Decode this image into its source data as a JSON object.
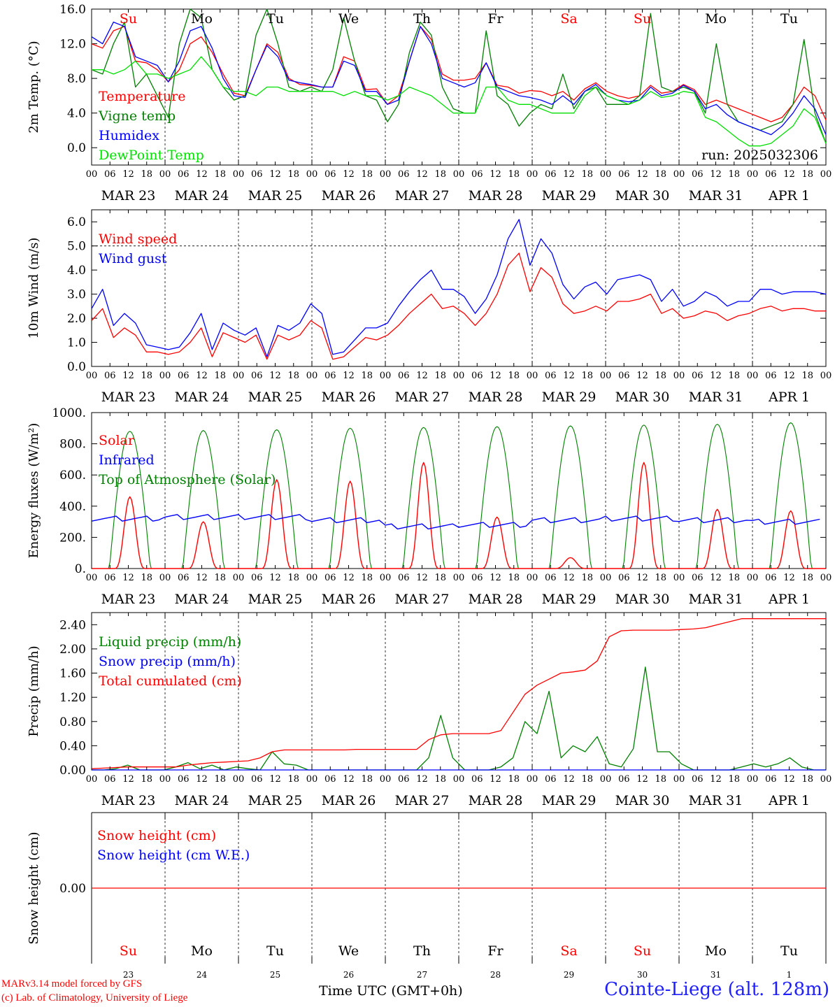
{
  "footer": {
    "model": "MARv3.14 model forced by GFS",
    "credit": "(c) Lab. of Climatology, University of Liege",
    "time_axis": "Time UTC (GMT+0h)",
    "station": "Cointe-Liege (alt. 128m)"
  },
  "colors": {
    "red": "#ff0000",
    "blue": "#0000ff",
    "dark_green": "#008000",
    "light_green": "#00e000",
    "weekend": "#ff0000"
  },
  "chart_data": [
    {
      "type": "line",
      "id": "temperature",
      "ylabel": "2m Temp. (°C)",
      "ylim": [
        -2,
        16
      ],
      "yticks": [
        0,
        4,
        8,
        12,
        16
      ],
      "ytick_labels": [
        "0.0",
        "4.0",
        "8.0",
        "12.0",
        "16.0"
      ],
      "hours_ticks": [
        "00",
        "06",
        "12",
        "18"
      ],
      "date_labels": [
        "MAR 23",
        "MAR 24",
        "MAR 25",
        "MAR 26",
        "MAR 27",
        "MAR 28",
        "MAR 29",
        "MAR 30",
        "MAR 31",
        "APR  1"
      ],
      "day_labels": [
        "Su",
        "Mo",
        "Tu",
        "We",
        "Th",
        "Fr",
        "Sa",
        "Su",
        "Mo",
        "Tu"
      ],
      "weekend": [
        true,
        false,
        false,
        false,
        false,
        false,
        true,
        true,
        false,
        false
      ],
      "annotation": "run: 2025032306",
      "series_step_hours": 6,
      "series": [
        {
          "name": "Temperature",
          "color": "#ff0000",
          "values": [
            12,
            11.5,
            13.5,
            14,
            10,
            9.8,
            9,
            7.6,
            9,
            12,
            12.8,
            11,
            8.5,
            6.3,
            6,
            9,
            12,
            11,
            8,
            7.3,
            7.2,
            7,
            7,
            10.5,
            10,
            6.7,
            6.8,
            5,
            6,
            10,
            14,
            12.5,
            8.5,
            7.8,
            7.8,
            8,
            9.8,
            7.2,
            7,
            6.3,
            6.6,
            6.5,
            6,
            6.5,
            5.5,
            6.8,
            7.5,
            6.5,
            6,
            5.7,
            6,
            7.2,
            6.3,
            6.5,
            7.3,
            6.7,
            5,
            5.5,
            5,
            4.5,
            4,
            3.5,
            3,
            3.5,
            5,
            7,
            6,
            3.2
          ]
        },
        {
          "name": "Vigne temp",
          "color": "#008000",
          "values": [
            9,
            8.5,
            12,
            14.5,
            7,
            8.5,
            6,
            3.5,
            12,
            16,
            15,
            9,
            7,
            5.5,
            6,
            13,
            16,
            12,
            7,
            6.5,
            7,
            6.5,
            9,
            15,
            10,
            6,
            5.5,
            3,
            5,
            11,
            14.5,
            13,
            7,
            4.5,
            4,
            4,
            13.5,
            6,
            5,
            2.5,
            4,
            5,
            4.5,
            8.5,
            4.5,
            6.5,
            7,
            5,
            5,
            5,
            6,
            15.5,
            7,
            6.5,
            7,
            6.5,
            4,
            12,
            5,
            3,
            2.5,
            2,
            2.5,
            3,
            5,
            12.5,
            4,
            0.5
          ]
        },
        {
          "name": "Humidex",
          "color": "#0000ff",
          "values": [
            12.8,
            12,
            14.5,
            14,
            10.5,
            10,
            9.5,
            7.6,
            10,
            13.5,
            14,
            11.5,
            8,
            6,
            5.8,
            9,
            11.8,
            10.5,
            7.8,
            7.5,
            7.3,
            7,
            7,
            10,
            9.5,
            6.5,
            6.5,
            5,
            5.5,
            10,
            14,
            12,
            8,
            7.5,
            7,
            7.5,
            9.8,
            7,
            6.5,
            6,
            5.8,
            5.5,
            5,
            6,
            5,
            6.5,
            7.3,
            6,
            5.5,
            5.3,
            5.5,
            7,
            6,
            6.3,
            7.2,
            6.5,
            4.5,
            5,
            3.8,
            3,
            2.5,
            2,
            1.5,
            2.5,
            4,
            6,
            4.5,
            1.5
          ]
        },
        {
          "name": "DewPoint Temp",
          "color": "#00e000",
          "values": [
            9,
            9,
            8.5,
            9,
            10,
            8.5,
            8.5,
            8,
            8.5,
            9,
            10.5,
            9,
            7,
            6.5,
            6.5,
            6,
            7,
            7,
            6.5,
            6.5,
            6.5,
            6.5,
            6.5,
            6,
            6.5,
            6,
            6,
            5.5,
            6,
            7,
            6.5,
            6,
            5,
            4,
            4,
            4,
            7,
            7,
            5.5,
            5,
            5,
            4.5,
            4,
            4,
            4,
            6,
            7,
            6,
            5.5,
            5,
            5.5,
            6.5,
            5.8,
            6,
            6.5,
            6.3,
            3.5,
            3,
            2,
            1,
            0.2,
            0.2,
            0.5,
            1.5,
            2.5,
            4.5,
            3.5,
            0.5
          ]
        }
      ],
      "legend": [
        {
          "label": "Temperature",
          "color": "#ff0000"
        },
        {
          "label": "Vigne temp",
          "color": "#008000"
        },
        {
          "label": "Humidex",
          "color": "#0000ff"
        },
        {
          "label": "DewPoint Temp",
          "color": "#00e000"
        }
      ]
    },
    {
      "type": "line",
      "id": "wind",
      "ylabel": "10m Wind (m/s)",
      "ylim": [
        0,
        6.5
      ],
      "yticks": [
        0,
        1,
        2,
        3,
        4,
        5,
        6
      ],
      "ytick_labels": [
        "0.0",
        "1.0",
        "2.0",
        "3.0",
        "4.0",
        "5.0",
        "6.0"
      ],
      "hline": 5,
      "date_labels": [
        "MAR 23",
        "MAR 24",
        "MAR 25",
        "MAR 26",
        "MAR 27",
        "MAR 28",
        "MAR 29",
        "MAR 30",
        "MAR 31",
        "APR  1"
      ],
      "series_step_hours": 6,
      "series": [
        {
          "name": "Wind speed",
          "color": "#ff0000",
          "values": [
            1.9,
            2.4,
            1.2,
            1.6,
            1.3,
            0.6,
            0.6,
            0.5,
            0.6,
            1,
            1.6,
            0.4,
            1.4,
            1.2,
            1,
            1.3,
            0.3,
            1.3,
            1.1,
            1.3,
            1.9,
            1.6,
            0.3,
            0.4,
            0.8,
            1.2,
            1.1,
            1.3,
            1.7,
            2.2,
            2.6,
            3,
            2.4,
            2.5,
            2.2,
            1.7,
            2.2,
            3,
            4.2,
            4.7,
            3.1,
            4.1,
            3.7,
            2.6,
            2.2,
            2.3,
            2.5,
            2.3,
            2.7,
            2.7,
            2.8,
            3,
            2.2,
            2.4,
            2,
            2.1,
            2.3,
            2.2,
            1.9,
            2.1,
            2.2,
            2.4,
            2.5,
            2.3,
            2.4,
            2.4,
            2.3,
            2.3
          ]
        },
        {
          "name": "Wind gust",
          "color": "#0000ff",
          "values": [
            2.4,
            3.2,
            1.7,
            2.2,
            1.8,
            0.9,
            0.8,
            0.7,
            0.8,
            1.4,
            2.2,
            0.7,
            1.8,
            1.5,
            1.3,
            1.6,
            0.4,
            1.7,
            1.5,
            1.8,
            2.6,
            2.2,
            0.5,
            0.6,
            1.1,
            1.6,
            1.6,
            1.8,
            2.5,
            3.1,
            3.6,
            4,
            3.2,
            3.2,
            2.9,
            2.2,
            2.8,
            3.8,
            5.3,
            6.1,
            4.2,
            5.3,
            4.7,
            3.4,
            2.8,
            3.3,
            3.5,
            3,
            3.6,
            3.7,
            3.8,
            3.6,
            2.7,
            3.2,
            2.5,
            2.7,
            3.1,
            2.9,
            2.5,
            2.7,
            2.7,
            3.2,
            3.2,
            3,
            3.1,
            3.1,
            3.1,
            3
          ]
        }
      ],
      "legend": [
        {
          "label": "Wind speed",
          "color": "#ff0000"
        },
        {
          "label": "Wind gust",
          "color": "#0000ff"
        }
      ]
    },
    {
      "type": "line",
      "id": "energy",
      "ylabel": "Energy fluxes (W/m²)",
      "ylim": [
        0,
        1000
      ],
      "yticks": [
        0,
        200,
        400,
        600,
        800,
        1000
      ],
      "ytick_labels": [
        "0.",
        "200.",
        "400.",
        "600.",
        "800.",
        "1000."
      ],
      "date_labels": [
        "MAR 23",
        "MAR 24",
        "MAR 25",
        "MAR 26",
        "MAR 27",
        "MAR 28",
        "MAR 29",
        "MAR 30",
        "MAR 31",
        "APR  1"
      ],
      "solar_peaks": [
        460,
        300,
        570,
        560,
        680,
        330,
        70,
        680,
        380,
        370
      ],
      "toa_peaks": [
        880,
        885,
        890,
        900,
        905,
        910,
        915,
        920,
        925,
        935
      ],
      "infrared_daily": [
        320,
        330,
        330,
        310,
        270,
        280,
        310,
        320,
        310,
        300
      ],
      "legend": [
        {
          "label": "Solar",
          "color": "#ff0000"
        },
        {
          "label": "Infrared",
          "color": "#0000ff"
        },
        {
          "label": "Top of Atmosphere (Solar)",
          "color": "#008000"
        }
      ]
    },
    {
      "type": "line",
      "id": "precip",
      "ylabel": "Precip (mm/h)",
      "ylim": [
        0,
        2.6
      ],
      "yticks": [
        0,
        0.4,
        0.8,
        1.2,
        1.6,
        2.0,
        2.4
      ],
      "ytick_labels": [
        "0.00",
        "0.40",
        "0.80",
        "1.20",
        "1.60",
        "2.00",
        "2.40"
      ],
      "date_labels": [
        "MAR 23",
        "MAR 24",
        "MAR 25",
        "MAR 26",
        "MAR 27",
        "MAR 28",
        "MAR 29",
        "MAR 30",
        "MAR 31",
        "APR  1"
      ],
      "series_step_hours": 6,
      "series": [
        {
          "name": "Liquid precip (mm/h)",
          "color": "#008000",
          "values": [
            0,
            0,
            0.02,
            0.08,
            0,
            0,
            0,
            0.05,
            0.12,
            0.02,
            0.08,
            0,
            0.05,
            0.02,
            0,
            0.3,
            0.1,
            0.08,
            0,
            0,
            0,
            0,
            0,
            0,
            0,
            0,
            0,
            0,
            0.2,
            0.9,
            0.2,
            0,
            0,
            0,
            0.05,
            0.2,
            0.8,
            0.6,
            1.3,
            0.2,
            0.4,
            0.3,
            0.55,
            0.1,
            0.05,
            0.35,
            1.7,
            0.3,
            0.3,
            0.1,
            0,
            0,
            0,
            0,
            0.05,
            0.1,
            0.05,
            0.1,
            0.2,
            0.05,
            0,
            0
          ]
        },
        {
          "name": "Snow precip (mm/h)",
          "color": "#0000ff",
          "values": [
            0,
            0,
            0,
            0,
            0,
            0,
            0,
            0,
            0,
            0,
            0,
            0,
            0,
            0,
            0,
            0,
            0,
            0,
            0,
            0,
            0,
            0,
            0,
            0,
            0,
            0,
            0,
            0,
            0,
            0,
            0,
            0,
            0,
            0,
            0,
            0,
            0,
            0,
            0,
            0,
            0,
            0,
            0,
            0,
            0,
            0,
            0,
            0,
            0,
            0,
            0,
            0,
            0,
            0,
            0,
            0,
            0,
            0,
            0,
            0,
            0,
            0
          ]
        },
        {
          "name": "Total cumulated (cm)",
          "color": "#ff0000",
          "values": [
            0.02,
            0.03,
            0.04,
            0.05,
            0.05,
            0.05,
            0.05,
            0.05,
            0.08,
            0.1,
            0.12,
            0.13,
            0.14,
            0.15,
            0.2,
            0.3,
            0.33,
            0.33,
            0.33,
            0.33,
            0.33,
            0.33,
            0.34,
            0.34,
            0.34,
            0.34,
            0.34,
            0.34,
            0.5,
            0.58,
            0.6,
            0.6,
            0.6,
            0.6,
            0.65,
            0.95,
            1.25,
            1.4,
            1.5,
            1.6,
            1.62,
            1.65,
            1.8,
            2.2,
            2.3,
            2.31,
            2.31,
            2.31,
            2.31,
            2.32,
            2.33,
            2.35,
            2.4,
            2.45,
            2.5,
            2.5,
            2.5,
            2.5,
            2.5,
            2.5,
            2.5,
            2.5
          ]
        }
      ],
      "legend": [
        {
          "label": "Liquid precip (mm/h)",
          "color": "#008000"
        },
        {
          "label": "Snow precip (mm/h)",
          "color": "#0000ff"
        },
        {
          "label": "Total cumulated (cm)",
          "color": "#ff0000"
        }
      ]
    },
    {
      "type": "line",
      "id": "snow",
      "ylabel": "Snow height (cm)",
      "yticks": [
        0
      ],
      "ytick_labels": [
        "0.00"
      ],
      "value": 0,
      "day_labels": [
        "Su",
        "Mo",
        "Tu",
        "We",
        "Th",
        "Fr",
        "Sa",
        "Su",
        "Mo",
        "Tu"
      ],
      "weekend": [
        true,
        false,
        false,
        false,
        false,
        false,
        true,
        true,
        false,
        false
      ],
      "date_numbers": [
        "23",
        "24",
        "25",
        "26",
        "27",
        "28",
        "29",
        "30",
        "31",
        "1"
      ],
      "legend": [
        {
          "label": "Snow height (cm)",
          "color": "#ff0000"
        },
        {
          "label": "Snow height (cm W.E.)",
          "color": "#0000ff"
        }
      ]
    }
  ]
}
